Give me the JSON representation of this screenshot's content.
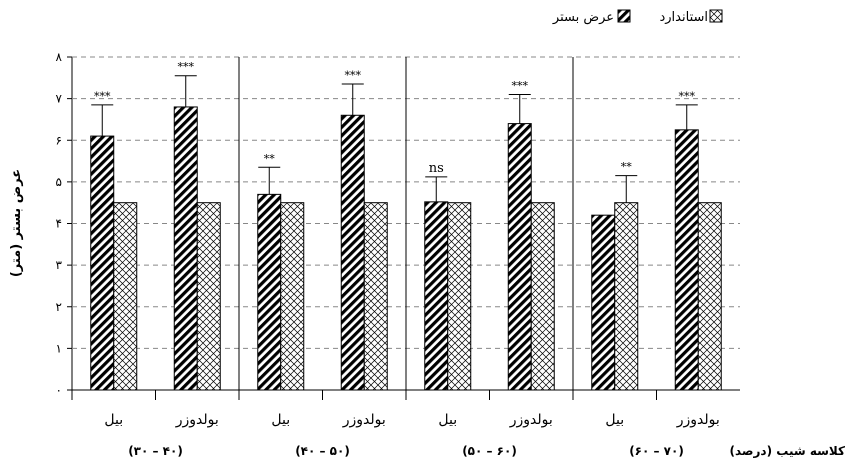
{
  "chart_data": {
    "type": "bar",
    "title": "",
    "ylabel": "عرض بستر (متر)",
    "xlabel": "کلاسه شیب (درصد)",
    "ylim": [
      0,
      8
    ],
    "yticks": [
      {
        "value": 0,
        "label": "۰"
      },
      {
        "value": 1,
        "label": "۱"
      },
      {
        "value": 2,
        "label": "۲"
      },
      {
        "value": 3,
        "label": "۳"
      },
      {
        "value": 4,
        "label": "۴"
      },
      {
        "value": 5,
        "label": "۵"
      },
      {
        "value": 6,
        "label": "۶"
      },
      {
        "value": 7,
        "label": "۷"
      },
      {
        "value": 8,
        "label": "۸"
      }
    ],
    "grid": true,
    "legend_position": "top",
    "legend": [
      {
        "name": "عرض بستر",
        "pattern": "diagonal-hatch",
        "color": "#000000"
      },
      {
        "name": "استاندارد",
        "pattern": "cross-hatch",
        "color": "#000000"
      }
    ],
    "group_order": "right-to-left",
    "slope_classes": [
      {
        "label": "(۶۰ – ۷۰)",
        "machines": [
          {
            "label": "بیل",
            "width": 4.2,
            "error": 0.0,
            "standard": 4.5,
            "standard_error": 0.65,
            "significance": "**"
          },
          {
            "label": "بولدوزر",
            "width": 6.25,
            "error": 0.6,
            "standard": 4.5,
            "significance": "***"
          }
        ]
      },
      {
        "label": "(۵۰ – ۶۰)",
        "machines": [
          {
            "label": "بیل",
            "width": 4.52,
            "error": 0.6,
            "standard": 4.5,
            "significance": "ns"
          },
          {
            "label": "بولدوزر",
            "width": 6.4,
            "error": 0.7,
            "standard": 4.5,
            "significance": "***"
          }
        ]
      },
      {
        "label": "(۴۰ – ۵۰)",
        "machines": [
          {
            "label": "بیل",
            "width": 4.7,
            "error": 0.65,
            "standard": 4.5,
            "significance": "**"
          },
          {
            "label": "بولدوزر",
            "width": 6.6,
            "error": 0.75,
            "standard": 4.5,
            "significance": "***"
          }
        ]
      },
      {
        "label": "(۳۰ – ۴۰)",
        "machines": [
          {
            "label": "بیل",
            "width": 6.1,
            "error": 0.75,
            "standard": 4.5,
            "significance": "***"
          },
          {
            "label": "بولدوزر",
            "width": 6.8,
            "error": 0.75,
            "standard": 4.5,
            "significance": "***"
          }
        ]
      }
    ]
  }
}
